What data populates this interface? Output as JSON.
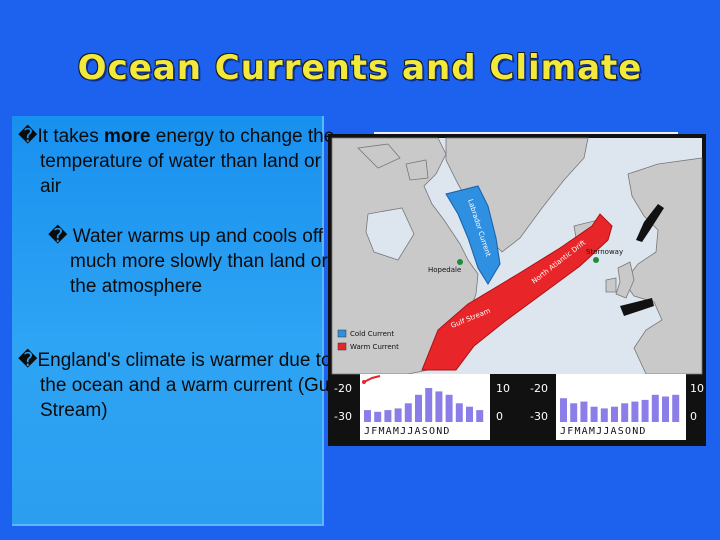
{
  "slide": {
    "title": "Ocean Currents and Climate",
    "bullets": [
      {
        "glyph": "�",
        "text_before": "It takes ",
        "emphasis": "more",
        "text_after": " energy to change the temperature of water than land or air"
      },
      {
        "glyph": "�",
        "text": " Water warms up and cools off much more slowly than land or the atmosphere"
      },
      {
        "glyph": "�",
        "text": "England's climate is warmer due to the ocean and a warm current (Gulf Stream)"
      }
    ]
  },
  "map": {
    "labels": {
      "labrador_current": "Labrador Current",
      "north_atlantic_drift": "North Atlantic Drift",
      "gulf_stream": "Gulf Stream",
      "hopedale": "Hopedale",
      "stornoway": "Stornoway"
    },
    "legend": [
      {
        "label": "Cold Current",
        "color": "#2f8fe0"
      },
      {
        "label": "Warm Current",
        "color": "#e8262a"
      }
    ],
    "colors": {
      "ocean": "#dde6ee",
      "land": "#c9c9c9",
      "cold": "#2f8fe0",
      "warm": "#e8262a"
    }
  },
  "climographs": [
    {
      "name": "Hopedale",
      "left_ticks": [
        "-20",
        "-30"
      ],
      "right_ticks": [
        "10",
        "0"
      ],
      "months": "JFMAMJJASOND",
      "precip": [
        0.35,
        0.3,
        0.35,
        0.4,
        0.55,
        0.8,
        1.0,
        0.9,
        0.8,
        0.55,
        0.45,
        0.35
      ]
    },
    {
      "name": "Stornoway",
      "left_ticks": [
        "-20",
        "-30"
      ],
      "right_ticks": [
        "10",
        "0"
      ],
      "months": "JFMAMJJASOND",
      "precip": [
        0.7,
        0.55,
        0.6,
        0.45,
        0.4,
        0.45,
        0.55,
        0.6,
        0.65,
        0.8,
        0.75,
        0.8
      ]
    }
  ]
}
